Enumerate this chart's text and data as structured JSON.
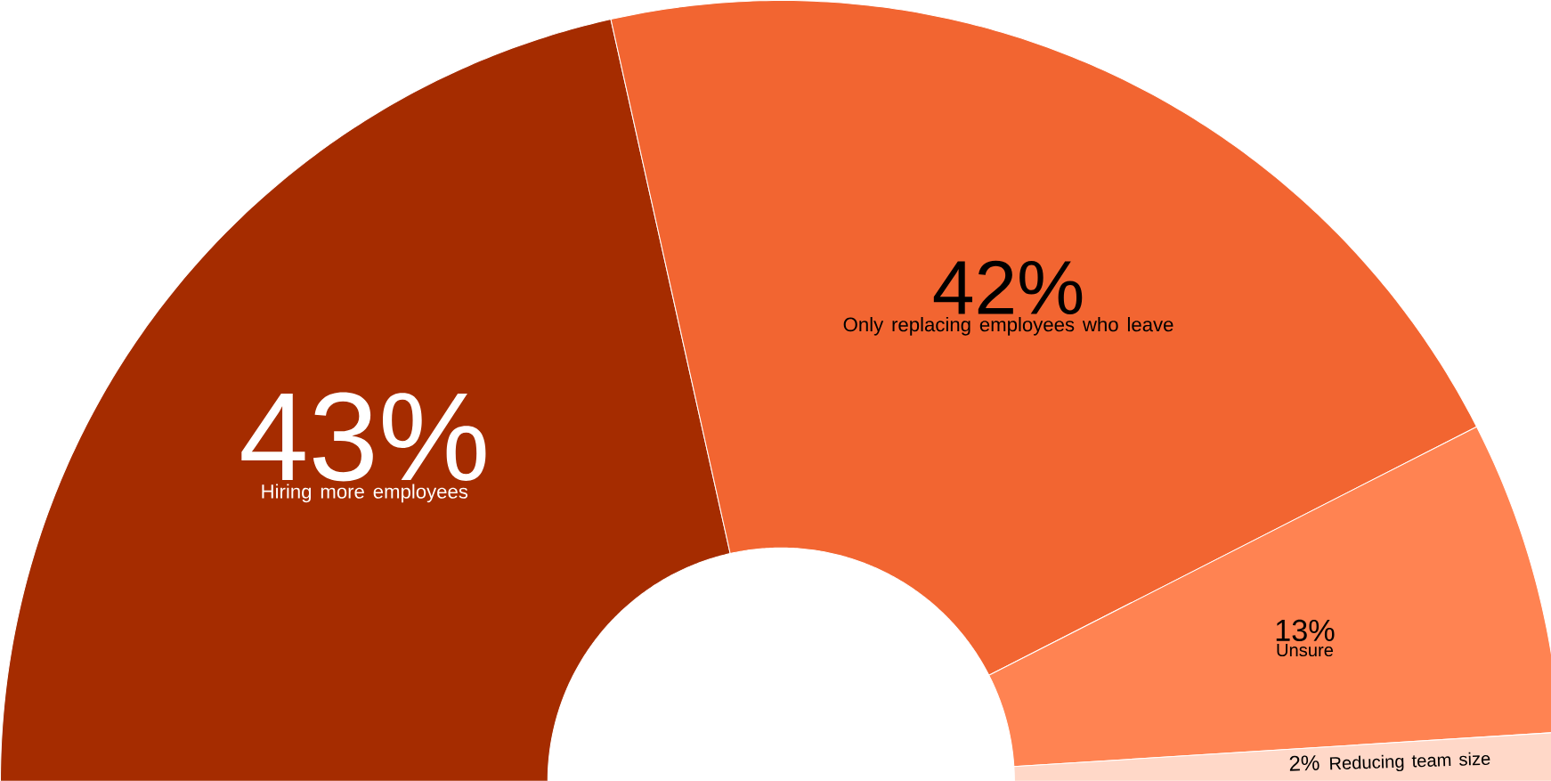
{
  "chart_data": {
    "type": "donut",
    "categories": [
      "Hiring more employees",
      "Only replacing employees who leave",
      "Unsure",
      "Reducing team size"
    ],
    "values": [
      43,
      42,
      13,
      2
    ],
    "value_labels": [
      "43%",
      "42%",
      "13%",
      "2%"
    ],
    "colors": [
      "#a52c00",
      "#f26531",
      "#ff8352",
      "#ffd8c8"
    ]
  }
}
